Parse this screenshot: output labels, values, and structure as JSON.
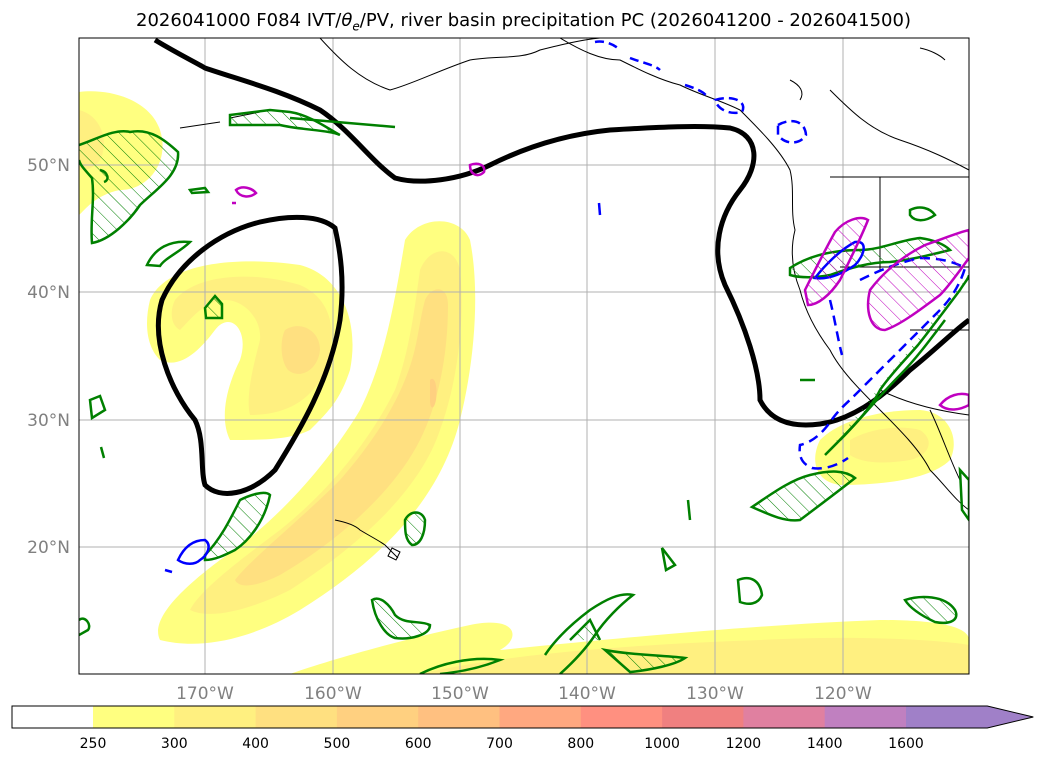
{
  "title_prefix": "2026041000 F084 IVT/",
  "title_theta": "θ",
  "title_theta_sub": "e",
  "title_suffix": "/PV, river basin precipitation PC (2026041200 - 2026041500)",
  "axes": {
    "lon_labels": [
      "170°W",
      "160°W",
      "150°W",
      "140°W",
      "130°W",
      "120°W"
    ],
    "lat_labels": [
      "50°N",
      "40°N",
      "30°N",
      "20°N"
    ]
  },
  "colorbar": {
    "levels": [
      "250",
      "300",
      "400",
      "500",
      "600",
      "700",
      "800",
      "1000",
      "1200",
      "1400",
      "1600"
    ],
    "colors": [
      "#ffff80",
      "#fff080",
      "#ffe080",
      "#ffd080",
      "#ffc080",
      "#ffa880",
      "#ff9080",
      "#f08080",
      "#e080a0",
      "#c080c0",
      "#a080c8"
    ],
    "extend": "max"
  },
  "colors": {
    "pv_contour": "#000000",
    "theta_e_contour": "#008000",
    "precip_positive": "#0000ff",
    "precip_negative": "#c000c0",
    "coastline": "#000000"
  }
}
